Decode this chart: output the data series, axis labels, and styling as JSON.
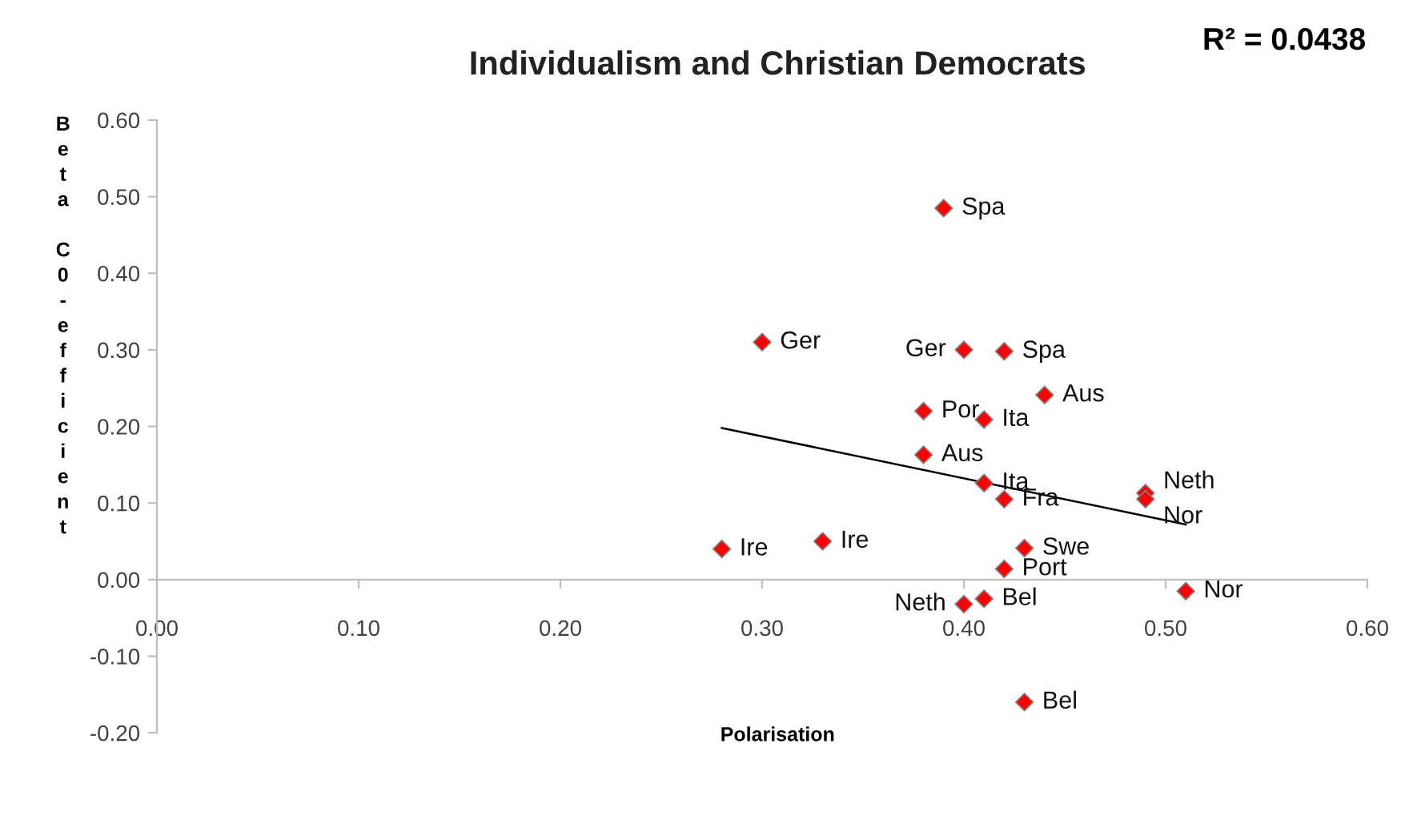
{
  "chart_data": {
    "type": "scatter",
    "title": "Individualism and Christian Democrats",
    "xlabel": "Polarisation",
    "ylabel": "Beta C0-efficient",
    "xlim": [
      0,
      0.6
    ],
    "xticks": [
      {
        "value": 0,
        "label": "0.00"
      },
      {
        "value": 0.1,
        "label": "0.10"
      },
      {
        "value": 0.2,
        "label": "0.20"
      },
      {
        "value": 0.3,
        "label": "0.30"
      },
      {
        "value": 0.4,
        "label": "0.40"
      },
      {
        "value": 0.5,
        "label": "0.50"
      },
      {
        "value": 0.6,
        "label": "0.60"
      }
    ],
    "ylim": [
      -0.2,
      0.6
    ],
    "yticks": [
      {
        "value": -0.2,
        "label": "-0.20"
      },
      {
        "value": -0.1,
        "label": "-0.10"
      },
      {
        "value": 0,
        "label": "0.00"
      },
      {
        "value": 0.1,
        "label": "0.10"
      },
      {
        "value": 0.2,
        "label": "0.20"
      },
      {
        "value": 0.3,
        "label": "0.30"
      },
      {
        "value": 0.4,
        "label": "0.40"
      },
      {
        "value": 0.5,
        "label": "0.50"
      },
      {
        "value": 0.6,
        "label": "0.60"
      }
    ],
    "grid": false,
    "legend": false,
    "marker": "diamond",
    "series": [
      {
        "color": "#ff0000",
        "x": [
          0.39,
          0.3,
          0.4,
          0.42,
          0.44,
          0.38,
          0.41,
          0.38,
          0.41,
          0.42,
          0.49,
          0.49,
          0.28,
          0.33,
          0.43,
          0.42,
          0.51,
          0.41,
          0.4,
          0.43
        ],
        "values": [
          0.485,
          0.31,
          0.3,
          0.298,
          0.241,
          0.22,
          0.209,
          0.163,
          0.126,
          0.105,
          0.113,
          0.105,
          0.04,
          0.05,
          0.041,
          0.014,
          -0.015,
          -0.025,
          -0.032,
          -0.16
        ]
      },
      {
        "type": "line",
        "color": "#000000",
        "x": [
          0.28,
          0.51
        ],
        "values": [
          0.198,
          0.072
        ],
        "line_style": "solid",
        "marker": "none"
      }
    ],
    "annotations": [
      "R² = 0.0438",
      {
        "text": "Spa",
        "x": 0.39,
        "y": 0.485
      },
      {
        "text": "Ger",
        "x": 0.3,
        "y": 0.31
      },
      {
        "text": "Ger",
        "x": 0.4,
        "y": 0.3
      },
      {
        "text": "Spa",
        "x": 0.42,
        "y": 0.298
      },
      {
        "text": "Aus",
        "x": 0.44,
        "y": 0.241
      },
      {
        "text": "Por",
        "x": 0.38,
        "y": 0.22
      },
      {
        "text": "Ita",
        "x": 0.41,
        "y": 0.209
      },
      {
        "text": "Aus",
        "x": 0.38,
        "y": 0.163
      },
      {
        "text": "Ita",
        "x": 0.41,
        "y": 0.126
      },
      {
        "text": "Fra",
        "x": 0.42,
        "y": 0.105
      },
      {
        "text": "Neth",
        "x": 0.49,
        "y": 0.113
      },
      {
        "text": "Nor",
        "x": 0.49,
        "y": 0.105
      },
      {
        "text": "Ire",
        "x": 0.28,
        "y": 0.04
      },
      {
        "text": "Ire",
        "x": 0.33,
        "y": 0.05
      },
      {
        "text": "Swe",
        "x": 0.43,
        "y": 0.041
      },
      {
        "text": "Port",
        "x": 0.42,
        "y": 0.014
      },
      {
        "text": "Nor",
        "x": 0.51,
        "y": -0.015
      },
      {
        "text": "Bel",
        "x": 0.41,
        "y": -0.025
      },
      {
        "text": "Neth",
        "x": 0.4,
        "y": -0.032
      },
      {
        "text": "Bel",
        "x": 0.43,
        "y": -0.16
      }
    ]
  }
}
